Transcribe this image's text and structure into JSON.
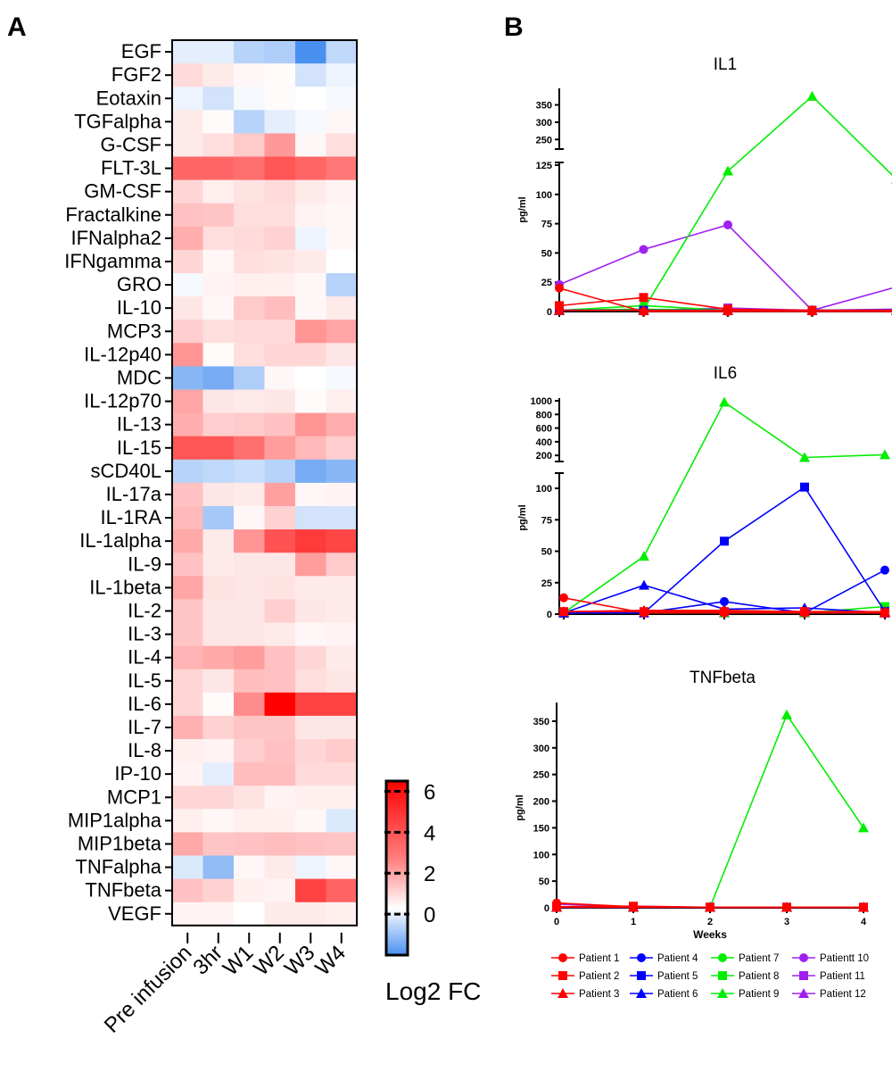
{
  "panels": {
    "a": "A",
    "b": "B"
  },
  "heatmap": {
    "rows": [
      "EGF",
      "FGF2",
      "Eotaxin",
      "TGFalpha",
      "G-CSF",
      "FLT-3L",
      "GM-CSF",
      "Fractalkine",
      "IFNalpha2",
      "IFNgamma",
      "GRO",
      "IL-10",
      "MCP3",
      "IL-12p40",
      "MDC",
      "IL-12p70",
      "IL-13",
      "IL-15",
      "sCD40L",
      "IL-17a",
      "IL-1RA",
      "IL-1alpha",
      "IL-9",
      "IL-1beta",
      "IL-2",
      "IL-3",
      "IL-4",
      "IL-5",
      "IL-6",
      "IL-7",
      "IL-8",
      "IP-10",
      "MCP1",
      "MIP1alpha",
      "MIP1beta",
      "TNFalpha",
      "TNFbeta",
      "VEGF"
    ],
    "columns": [
      "Pre infusion",
      "3hr",
      "W1",
      "W2",
      "W3",
      "W4"
    ],
    "values": [
      [
        -0.3,
        -0.3,
        -0.8,
        -0.9,
        -2.0,
        -0.7
      ],
      [
        0.9,
        0.5,
        0.2,
        0.1,
        -0.5,
        -0.2
      ],
      [
        -0.2,
        -0.5,
        -0.1,
        0.1,
        0.0,
        -0.1
      ],
      [
        0.5,
        0.1,
        -0.8,
        -0.3,
        -0.1,
        0.2
      ],
      [
        0.5,
        0.8,
        1.3,
        2.5,
        0.2,
        0.8
      ],
      [
        3.7,
        3.7,
        3.5,
        4.1,
        3.7,
        3.3
      ],
      [
        1.0,
        0.4,
        0.7,
        0.9,
        0.5,
        0.3
      ],
      [
        1.5,
        1.4,
        0.8,
        0.8,
        0.3,
        0.2
      ],
      [
        2.0,
        0.8,
        0.9,
        1.1,
        -0.2,
        0.2
      ],
      [
        1.0,
        0.2,
        0.8,
        0.7,
        0.5,
        0.0
      ],
      [
        -0.1,
        0.3,
        0.4,
        0.4,
        0.2,
        -0.8
      ],
      [
        0.6,
        0.2,
        1.3,
        1.6,
        0.2,
        0.5
      ],
      [
        1.2,
        0.8,
        0.9,
        0.9,
        2.6,
        2.2
      ],
      [
        2.6,
        0.1,
        0.8,
        1.0,
        1.0,
        0.6
      ],
      [
        -1.3,
        -1.5,
        -0.9,
        0.2,
        0.0,
        -0.1
      ],
      [
        2.2,
        0.6,
        0.5,
        0.6,
        0.1,
        0.4
      ],
      [
        2.0,
        1.2,
        1.3,
        1.5,
        2.6,
        2.0
      ],
      [
        4.1,
        4.1,
        3.5,
        2.4,
        1.7,
        1.2
      ],
      [
        -0.8,
        -0.7,
        -0.6,
        -0.8,
        -1.5,
        -1.3
      ],
      [
        1.5,
        0.6,
        0.5,
        2.3,
        0.2,
        0.3
      ],
      [
        1.7,
        -1.0,
        0.2,
        1.1,
        -0.5,
        -0.5
      ],
      [
        2.1,
        0.5,
        2.6,
        4.2,
        4.8,
        4.5
      ],
      [
        1.5,
        0.5,
        0.6,
        0.6,
        2.4,
        1.3
      ],
      [
        2.2,
        0.7,
        0.6,
        0.7,
        0.5,
        0.5
      ],
      [
        1.4,
        0.6,
        0.6,
        1.2,
        0.6,
        0.5
      ],
      [
        1.4,
        0.6,
        0.6,
        0.5,
        0.2,
        0.3
      ],
      [
        1.8,
        2.1,
        2.4,
        1.5,
        1.0,
        0.5
      ],
      [
        1.0,
        0.6,
        1.6,
        1.5,
        0.8,
        0.6
      ],
      [
        1.0,
        0.1,
        2.8,
        6.2,
        4.6,
        4.6
      ],
      [
        1.9,
        1.1,
        1.4,
        1.4,
        0.6,
        0.6
      ],
      [
        0.4,
        0.3,
        1.2,
        1.5,
        1.0,
        1.3
      ],
      [
        0.3,
        -0.3,
        1.6,
        1.6,
        0.9,
        0.9
      ],
      [
        1.0,
        1.0,
        0.7,
        0.3,
        0.4,
        0.4
      ],
      [
        0.4,
        0.2,
        0.4,
        0.4,
        0.2,
        -0.4
      ],
      [
        2.1,
        1.4,
        1.5,
        1.6,
        1.5,
        1.4
      ],
      [
        -0.4,
        -1.2,
        0.2,
        0.5,
        -0.2,
        0.2
      ],
      [
        1.5,
        1.1,
        0.4,
        0.3,
        4.6,
        3.8
      ],
      [
        0.3,
        0.3,
        0.0,
        0.5,
        0.5,
        0.4
      ]
    ],
    "colorbar": {
      "title": "Log2 FC",
      "ticks": [
        "6",
        "4",
        "2",
        "0"
      ],
      "min": -2,
      "max": 6.5
    }
  },
  "chart_data": [
    {
      "type": "heatmap",
      "title": "",
      "rows_ref": "heatmap.rows",
      "columns_ref": "heatmap.columns",
      "values_ref": "heatmap.values",
      "colorbar_label": "Log2 FC",
      "color_scale": [
        "#4a90f0",
        "#ffffff",
        "#ff0000"
      ]
    },
    {
      "type": "line",
      "title": "IL1",
      "ylabel": "pg/ml",
      "xlabel": "",
      "x": [
        0,
        1,
        2,
        3,
        4
      ],
      "ylim_lower": [
        0,
        125
      ],
      "ylim_upper": [
        230,
        390
      ],
      "yticks_lower": [
        "0",
        "25",
        "50",
        "75",
        "100",
        "125"
      ],
      "yticks_upper": [
        "250",
        "300",
        "350"
      ],
      "series": [
        {
          "name": "Patient 1",
          "values": [
            20,
            0,
            0,
            0,
            0
          ]
        },
        {
          "name": "Patient 2",
          "values": [
            5,
            12,
            2,
            1,
            1
          ]
        },
        {
          "name": "Patient 3",
          "values": [
            1,
            1,
            1,
            1,
            1
          ]
        },
        {
          "name": "Patient 4",
          "values": [
            1,
            1,
            1,
            1,
            1
          ]
        },
        {
          "name": "Patient 5",
          "values": [
            1,
            1,
            1,
            1,
            1
          ]
        },
        {
          "name": "Patient 6",
          "values": [
            1,
            1,
            1,
            1,
            1
          ]
        },
        {
          "name": "Patient 7",
          "values": [
            1,
            5,
            1,
            1,
            1
          ]
        },
        {
          "name": "Patient 8",
          "values": [
            1,
            2,
            1,
            1,
            1
          ]
        },
        {
          "name": "Patient 9",
          "values": [
            1,
            2,
            120,
            375,
            135
          ]
        },
        {
          "name": "Patientt 10",
          "values": [
            23,
            53,
            74,
            1,
            21
          ]
        },
        {
          "name": "Patient 11",
          "values": [
            1,
            1,
            3,
            1,
            2
          ]
        },
        {
          "name": "Patient 12",
          "values": [
            1,
            1,
            1,
            1,
            1
          ]
        }
      ]
    },
    {
      "type": "line",
      "title": "IL6",
      "ylabel": "pg/ml",
      "xlabel": "",
      "x": [
        0,
        1,
        2,
        3,
        4
      ],
      "ylim_lower": [
        0,
        110
      ],
      "ylim_upper": [
        150,
        1000
      ],
      "yticks_lower": [
        "0",
        "25",
        "50",
        "75",
        "100"
      ],
      "yticks_upper": [
        "200",
        "400",
        "600",
        "800",
        "1000"
      ],
      "series": [
        {
          "name": "Patient 1",
          "values": [
            13,
            1,
            1,
            1,
            1
          ]
        },
        {
          "name": "Patient 2",
          "values": [
            2,
            2,
            2,
            2,
            1
          ]
        },
        {
          "name": "Patient 3",
          "values": [
            2,
            3,
            3,
            2,
            2
          ]
        },
        {
          "name": "Patient 4",
          "values": [
            1,
            1,
            10,
            1,
            35
          ]
        },
        {
          "name": "Patient 5",
          "values": [
            1,
            1,
            58,
            101,
            2
          ]
        },
        {
          "name": "Patient 6",
          "values": [
            1,
            23,
            4,
            5,
            1
          ]
        },
        {
          "name": "Patient 7",
          "values": [
            1,
            1,
            1,
            1,
            1
          ]
        },
        {
          "name": "Patient 8",
          "values": [
            1,
            1,
            1,
            1,
            6
          ]
        },
        {
          "name": "Patient 9",
          "values": [
            1,
            46,
            980,
            170,
            210
          ]
        },
        {
          "name": "Patientt 10",
          "values": [
            1,
            1,
            1,
            1,
            1
          ]
        },
        {
          "name": "Patient 11",
          "values": [
            1,
            1,
            1,
            1,
            1
          ]
        },
        {
          "name": "Patient 12",
          "values": [
            1,
            1,
            1,
            1,
            1
          ]
        }
      ]
    },
    {
      "type": "line",
      "title": "TNFbeta",
      "ylabel": "pg/ml",
      "xlabel": "Weeks",
      "x": [
        0,
        1,
        2,
        3,
        4
      ],
      "ylim": [
        0,
        380
      ],
      "yticks": [
        "0",
        "50",
        "100",
        "150",
        "200",
        "250",
        "300",
        "350"
      ],
      "xticks": [
        "0",
        "1",
        "2",
        "3",
        "4"
      ],
      "series": [
        {
          "name": "Patient 1",
          "values": [
            9,
            2,
            1,
            1,
            1
          ]
        },
        {
          "name": "Patient 2",
          "values": [
            2,
            3,
            1,
            1,
            1
          ]
        },
        {
          "name": "Patient 3",
          "values": [
            1,
            1,
            1,
            1,
            1
          ]
        },
        {
          "name": "Patient 4",
          "values": [
            1,
            1,
            1,
            1,
            1
          ]
        },
        {
          "name": "Patient 5",
          "values": [
            1,
            1,
            1,
            1,
            1
          ]
        },
        {
          "name": "Patient 6",
          "values": [
            1,
            1,
            1,
            1,
            1
          ]
        },
        {
          "name": "Patient 7",
          "values": [
            1,
            1,
            1,
            1,
            1
          ]
        },
        {
          "name": "Patient 8",
          "values": [
            1,
            1,
            1,
            1,
            1
          ]
        },
        {
          "name": "Patient 9",
          "values": [
            1,
            1,
            1,
            362,
            150
          ]
        },
        {
          "name": "Patientt 10",
          "values": [
            7,
            1,
            1,
            1,
            1
          ]
        },
        {
          "name": "Patient 11",
          "values": [
            1,
            1,
            1,
            1,
            1
          ]
        },
        {
          "name": "Patient 12",
          "values": [
            1,
            1,
            1,
            1,
            1
          ]
        }
      ]
    }
  ],
  "legend": [
    {
      "name": "Patient 1",
      "color": "#ff0000",
      "marker": "circle"
    },
    {
      "name": "Patient 4",
      "color": "#0000ff",
      "marker": "circle"
    },
    {
      "name": "Patient 7",
      "color": "#00ee00",
      "marker": "circle"
    },
    {
      "name": "Patientt 10",
      "color": "#a020f0",
      "marker": "circle"
    },
    {
      "name": "Patient 2",
      "color": "#ff0000",
      "marker": "square"
    },
    {
      "name": "Patient 5",
      "color": "#0000ff",
      "marker": "square"
    },
    {
      "name": "Patient 8",
      "color": "#00ee00",
      "marker": "square"
    },
    {
      "name": "Patient 11",
      "color": "#a020f0",
      "marker": "square"
    },
    {
      "name": "Patient 3",
      "color": "#ff0000",
      "marker": "triangle"
    },
    {
      "name": "Patient 6",
      "color": "#0000ff",
      "marker": "triangle"
    },
    {
      "name": "Patient 9",
      "color": "#00ee00",
      "marker": "triangle"
    },
    {
      "name": "Patient 12",
      "color": "#a020f0",
      "marker": "triangle"
    }
  ]
}
